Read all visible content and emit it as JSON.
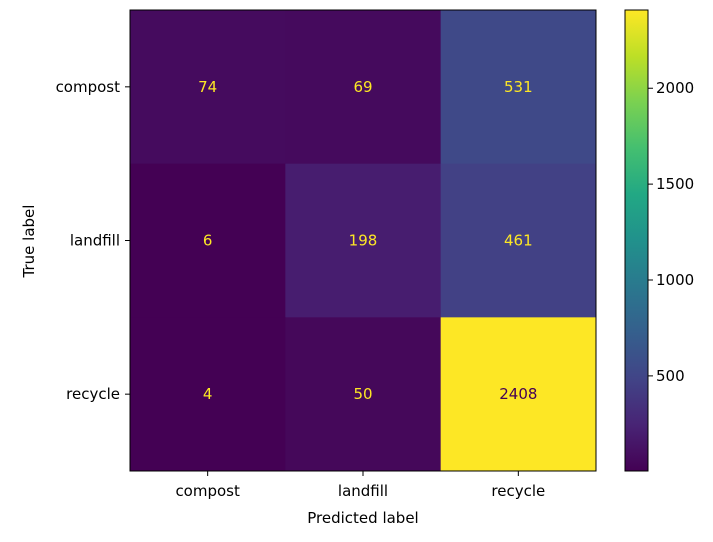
{
  "chart_data": {
    "type": "heatmap",
    "title": "",
    "xlabel": "Predicted label",
    "ylabel": "True label",
    "x_categories": [
      "compost",
      "landfill",
      "recycle"
    ],
    "y_categories": [
      "compost",
      "landfill",
      "recycle"
    ],
    "values": [
      [
        74,
        69,
        531
      ],
      [
        6,
        198,
        461
      ],
      [
        4,
        50,
        2408
      ]
    ],
    "colormap": "viridis",
    "value_range": [
      4,
      2408
    ],
    "colorbar_ticks": [
      500,
      1000,
      1500,
      2000
    ],
    "grid": false,
    "text_colors": {
      "on_dark": "#fde725",
      "on_light": "#440154"
    }
  }
}
